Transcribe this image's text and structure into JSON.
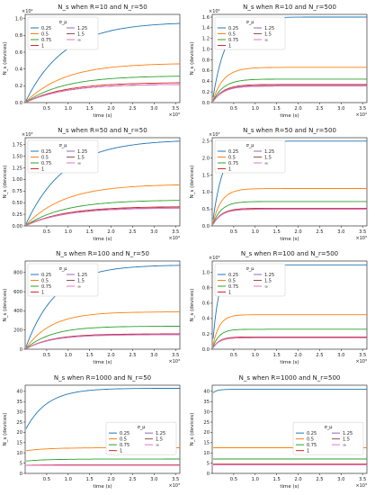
{
  "figure": {
    "title": ""
  },
  "palette": {
    "0.25": "#1f77b4",
    "0.5": "#ff7f0e",
    "0.75": "#2ca02c",
    "1": "#d62728",
    "1.25": "#9467bd",
    "1.5": "#8c564b",
    "inf": "#e377c2"
  },
  "legend_title": "σ_μ",
  "chart_data": [
    {
      "type": "line",
      "title": "N_s when R=10 and N_r=50",
      "xlabel": "time (s)",
      "ylabel": "N_s (devices)",
      "x_exponent": "×10³",
      "y_exponent": "×10⁴",
      "xlim": [
        0,
        3.6
      ],
      "ylim": [
        0,
        1.05
      ],
      "xticks": [
        "0.5",
        "1.0",
        "1.5",
        "2.0",
        "2.5",
        "3.0",
        "3.5"
      ],
      "yticks": [
        "0.0",
        "0.2",
        "0.4",
        "0.6",
        "0.8",
        "1.0"
      ],
      "legend_loc": "upper left",
      "legend_cols": 2,
      "series": [
        {
          "name": "0.25",
          "final": 0.96,
          "init": 0.0,
          "tau": 0.9
        },
        {
          "name": "0.5",
          "final": 0.47,
          "init": 0.0,
          "tau": 0.9
        },
        {
          "name": "0.75",
          "final": 0.32,
          "init": 0.0,
          "tau": 0.9
        },
        {
          "name": "1",
          "final": 0.24,
          "init": 0.0,
          "tau": 0.9
        },
        {
          "name": "1.25",
          "final": 0.22,
          "init": 0.0,
          "tau": 0.9
        },
        {
          "name": "1.5",
          "final": 0.22,
          "init": 0.0,
          "tau": 0.9
        },
        {
          "name": "∞",
          "final": 0.22,
          "init": 0.0,
          "tau": 0.9
        }
      ]
    },
    {
      "type": "line",
      "title": "N_s when R=10 and N_r=500",
      "xlabel": "time (s)",
      "ylabel": "N_s (devices)",
      "x_exponent": "×10³",
      "y_exponent": "×10⁴",
      "xlim": [
        0,
        3.6
      ],
      "ylim": [
        0,
        1.65
      ],
      "xticks": [
        "0.5",
        "1.0",
        "1.5",
        "2.0",
        "2.5",
        "3.0",
        "3.5"
      ],
      "yticks": [
        "0.0",
        "0.2",
        "0.4",
        "0.6",
        "0.8",
        "1.0",
        "1.2",
        "1.4",
        "1.6"
      ],
      "legend_loc": "upper left",
      "legend_cols": 2,
      "series": [
        {
          "name": "0.25",
          "final": 1.6,
          "init": 0.0,
          "tau": 0.3
        },
        {
          "name": "0.5",
          "final": 0.66,
          "init": 0.0,
          "tau": 0.25
        },
        {
          "name": "0.75",
          "final": 0.44,
          "init": 0.0,
          "tau": 0.25
        },
        {
          "name": "1",
          "final": 0.34,
          "init": 0.0,
          "tau": 0.25
        },
        {
          "name": "1.25",
          "final": 0.32,
          "init": 0.0,
          "tau": 0.25
        },
        {
          "name": "1.5",
          "final": 0.31,
          "init": 0.0,
          "tau": 0.25
        },
        {
          "name": "∞",
          "final": 0.31,
          "init": 0.0,
          "tau": 0.25
        }
      ]
    },
    {
      "type": "line",
      "title": "N_s when R=50 and N_r=50",
      "xlabel": "time (s)",
      "ylabel": "N_s (devices)",
      "x_exponent": "×10³",
      "y_exponent": "×10³",
      "xlim": [
        0,
        3.6
      ],
      "ylim": [
        0,
        1.9
      ],
      "xticks": [
        "0.5",
        "1.0",
        "1.5",
        "2.0",
        "2.5",
        "3.0",
        "3.5"
      ],
      "yticks": [
        "0.00",
        "0.25",
        "0.50",
        "0.75",
        "1.00",
        "1.25",
        "1.50",
        "1.75"
      ],
      "legend_loc": "upper left",
      "legend_cols": 2,
      "series": [
        {
          "name": "0.25",
          "final": 1.86,
          "init": 0.0,
          "tau": 0.9
        },
        {
          "name": "0.5",
          "final": 0.9,
          "init": 0.0,
          "tau": 0.9
        },
        {
          "name": "0.75",
          "final": 0.56,
          "init": 0.0,
          "tau": 0.9
        },
        {
          "name": "1",
          "final": 0.42,
          "init": 0.0,
          "tau": 0.9
        },
        {
          "name": "1.25",
          "final": 0.4,
          "init": 0.0,
          "tau": 0.9
        },
        {
          "name": "1.5",
          "final": 0.39,
          "init": 0.0,
          "tau": 0.9
        },
        {
          "name": "∞",
          "final": 0.39,
          "init": 0.0,
          "tau": 0.9
        }
      ]
    },
    {
      "type": "line",
      "title": "N_s when R=50 and N_r=500",
      "xlabel": "time (s)",
      "ylabel": "N_s (devices)",
      "x_exponent": "×10³",
      "y_exponent": "×10³",
      "xlim": [
        0,
        3.6
      ],
      "ylim": [
        0,
        2.6
      ],
      "xticks": [
        "0.5",
        "1.0",
        "1.5",
        "2.0",
        "2.5",
        "3.0",
        "3.5"
      ],
      "yticks": [
        "0.0",
        "0.5",
        "1.0",
        "1.5",
        "2.0",
        "2.5"
      ],
      "legend_loc": "upper left",
      "legend_cols": 2,
      "series": [
        {
          "name": "0.25",
          "final": 2.5,
          "init": 0.0,
          "tau": 0.25
        },
        {
          "name": "0.5",
          "final": 1.1,
          "init": 0.0,
          "tau": 0.2
        },
        {
          "name": "0.75",
          "final": 0.72,
          "init": 0.0,
          "tau": 0.2
        },
        {
          "name": "1",
          "final": 0.52,
          "init": 0.0,
          "tau": 0.2
        },
        {
          "name": "1.25",
          "final": 0.5,
          "init": 0.0,
          "tau": 0.2
        },
        {
          "name": "1.5",
          "final": 0.49,
          "init": 0.0,
          "tau": 0.2
        },
        {
          "name": "∞",
          "final": 0.49,
          "init": 0.0,
          "tau": 0.2
        }
      ]
    },
    {
      "type": "line",
      "title": "N_s when R=100 and N_r=50",
      "xlabel": "time (s)",
      "ylabel": "N_s (devices)",
      "x_exponent": "×10³",
      "y_exponent": "",
      "xlim": [
        0,
        3.6
      ],
      "ylim": [
        0,
        920
      ],
      "xticks": [
        "0.5",
        "1.0",
        "1.5",
        "2.0",
        "2.5",
        "3.0",
        "3.5"
      ],
      "yticks": [
        "0",
        "200",
        "400",
        "600",
        "800"
      ],
      "legend_loc": "upper left",
      "legend_cols": 2,
      "series": [
        {
          "name": "0.25",
          "final": 880,
          "init": 0,
          "tau": 0.7
        },
        {
          "name": "0.5",
          "final": 390,
          "init": 0,
          "tau": 0.6
        },
        {
          "name": "0.75",
          "final": 240,
          "init": 0,
          "tau": 0.6
        },
        {
          "name": "1",
          "final": 160,
          "init": 0,
          "tau": 0.6
        },
        {
          "name": "1.25",
          "final": 155,
          "init": 0,
          "tau": 0.6
        },
        {
          "name": "1.5",
          "final": 152,
          "init": 0,
          "tau": 0.6
        },
        {
          "name": "∞",
          "final": 150,
          "init": 0,
          "tau": 0.6
        }
      ]
    },
    {
      "type": "line",
      "title": "N_s when R=100 and N_r=500",
      "xlabel": "time (s)",
      "ylabel": "N_s (devices)",
      "x_exponent": "×10³",
      "y_exponent": "×10³",
      "xlim": [
        0,
        3.6
      ],
      "ylim": [
        0,
        1.15
      ],
      "xticks": [
        "0.5",
        "1.0",
        "1.5",
        "2.0",
        "2.5",
        "3.0",
        "3.5"
      ],
      "yticks": [
        "0.0",
        "0.2",
        "0.4",
        "0.6",
        "0.8",
        "1.0"
      ],
      "legend_loc": "upper left",
      "legend_cols": 2,
      "series": [
        {
          "name": "0.25",
          "final": 1.1,
          "init": 0.0,
          "tau": 0.15
        },
        {
          "name": "0.5",
          "final": 0.45,
          "init": 0.0,
          "tau": 0.15
        },
        {
          "name": "0.75",
          "final": 0.26,
          "init": 0.0,
          "tau": 0.15
        },
        {
          "name": "1",
          "final": 0.16,
          "init": 0.0,
          "tau": 0.15
        },
        {
          "name": "1.25",
          "final": 0.15,
          "init": 0.0,
          "tau": 0.15
        },
        {
          "name": "1.5",
          "final": 0.15,
          "init": 0.0,
          "tau": 0.15
        },
        {
          "name": "∞",
          "final": 0.15,
          "init": 0.0,
          "tau": 0.15
        }
      ]
    },
    {
      "type": "line",
      "title": "N_s when R=1000 and N_r=50",
      "xlabel": "time (s)",
      "ylabel": "N_s (devices)",
      "x_exponent": "×10³",
      "y_exponent": "",
      "xlim": [
        0,
        3.6
      ],
      "ylim": [
        0,
        43
      ],
      "xticks": [
        "0.5",
        "1.0",
        "1.5",
        "2.0",
        "2.5",
        "3.0",
        "3.5"
      ],
      "yticks": [
        "0",
        "5",
        "10",
        "15",
        "20",
        "25",
        "30",
        "35",
        "40"
      ],
      "legend_loc": "center right",
      "legend_cols": 2,
      "series": [
        {
          "name": "0.25",
          "final": 41.5,
          "init": 21,
          "tau": 0.5
        },
        {
          "name": "0.5",
          "final": 12.5,
          "init": 11,
          "tau": 0.5
        },
        {
          "name": "0.75",
          "final": 7,
          "init": 6,
          "tau": 0.5
        },
        {
          "name": "1",
          "final": 4.2,
          "init": 4,
          "tau": 0.5
        },
        {
          "name": "1.25",
          "final": 4,
          "init": 4,
          "tau": 0.5
        },
        {
          "name": "1.5",
          "final": 4,
          "init": 4,
          "tau": 0.5
        },
        {
          "name": "∞",
          "final": 4,
          "init": 4,
          "tau": 0.5
        }
      ]
    },
    {
      "type": "line",
      "title": "N_s when R=1000 and N_r=500",
      "xlabel": "time (s)",
      "ylabel": "N_s (devices)",
      "x_exponent": "×10³",
      "y_exponent": "",
      "xlim": [
        0,
        3.6
      ],
      "ylim": [
        0,
        43
      ],
      "xticks": [
        "0.5",
        "1.0",
        "1.5",
        "2.0",
        "2.5",
        "3.0",
        "3.5"
      ],
      "yticks": [
        "0",
        "5",
        "10",
        "15",
        "20",
        "25",
        "30",
        "35",
        "40"
      ],
      "legend_loc": "center right",
      "legend_cols": 2,
      "series": [
        {
          "name": "0.25",
          "final": 41,
          "init": 39,
          "tau": 0.1
        },
        {
          "name": "0.5",
          "final": 12.5,
          "init": 12.5,
          "tau": 0.1
        },
        {
          "name": "0.75",
          "final": 7,
          "init": 7,
          "tau": 0.1
        },
        {
          "name": "1",
          "final": 4.5,
          "init": 4.5,
          "tau": 0.1
        },
        {
          "name": "1.25",
          "final": 4.2,
          "init": 4.2,
          "tau": 0.1
        },
        {
          "name": "1.5",
          "final": 4.2,
          "init": 4.2,
          "tau": 0.1
        },
        {
          "name": "∞",
          "final": 4.2,
          "init": 4.2,
          "tau": 0.1
        }
      ]
    }
  ]
}
